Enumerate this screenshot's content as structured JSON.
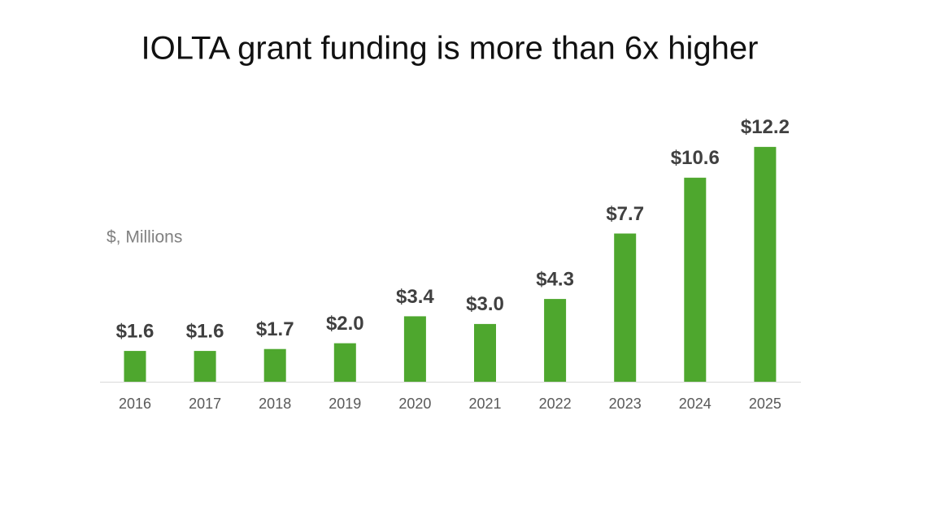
{
  "chart_data": {
    "type": "bar",
    "title": "IOLTA grant funding is more than 6x higher",
    "y_label": "$, Millions",
    "categories": [
      "2016",
      "2017",
      "2018",
      "2019",
      "2020",
      "2021",
      "2022",
      "2023",
      "2024",
      "2025"
    ],
    "values": [
      1.6,
      1.6,
      1.7,
      2.0,
      3.4,
      3.0,
      4.3,
      7.7,
      10.6,
      12.2
    ],
    "value_labels": [
      "$1.6",
      "$1.6",
      "$1.7",
      "$2.0",
      "$3.4",
      "$3.0",
      "$4.3",
      "$7.7",
      "$10.6",
      "$12.2"
    ],
    "color": "#4ea72e"
  }
}
